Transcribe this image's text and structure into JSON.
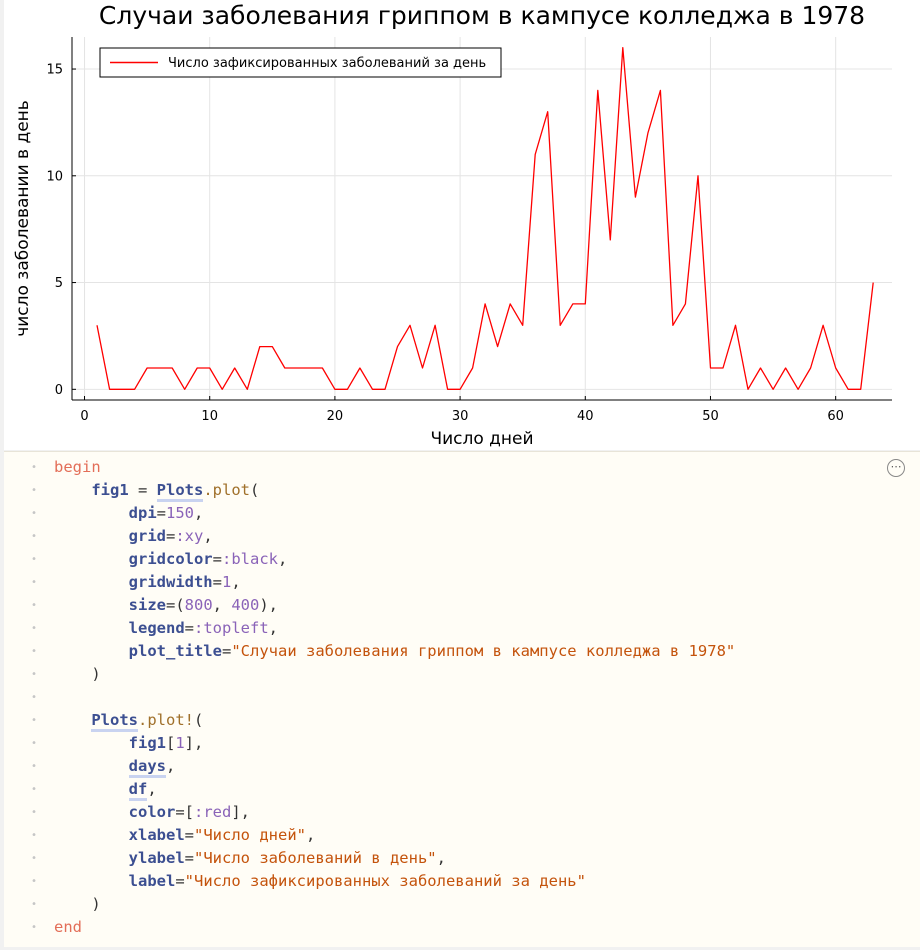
{
  "chart_data": {
    "type": "line",
    "title": "Случаи заболевания гриппом в кампусе колледжа в 1978",
    "xlabel": "Число дней",
    "ylabel": "число заболевании в день",
    "xlim": [
      -1,
      64.5
    ],
    "ylim": [
      -0.5,
      16.5
    ],
    "xticks": [
      0,
      10,
      20,
      30,
      40,
      50,
      60
    ],
    "yticks": [
      0,
      5,
      10,
      15
    ],
    "grid": true,
    "legend_position": "top-left",
    "series": [
      {
        "name": "Число зафиксированных заболеваний за день",
        "color": "#ff0000",
        "x": [
          1,
          2,
          3,
          4,
          5,
          6,
          7,
          8,
          9,
          10,
          11,
          12,
          13,
          14,
          15,
          16,
          17,
          18,
          19,
          20,
          21,
          22,
          23,
          24,
          25,
          26,
          27,
          28,
          29,
          30,
          31,
          32,
          33,
          34,
          35,
          36,
          37,
          38,
          39,
          40,
          41,
          42,
          43,
          44,
          45,
          46,
          47,
          48,
          49,
          50,
          51,
          52,
          53,
          54,
          55,
          56,
          57,
          58,
          59,
          60,
          61,
          62,
          63
        ],
        "y": [
          3,
          0,
          0,
          0,
          1,
          1,
          1,
          0,
          1,
          1,
          0,
          1,
          0,
          2,
          2,
          1,
          1,
          1,
          1,
          0,
          0,
          1,
          0,
          0,
          2,
          3,
          1,
          3,
          0,
          0,
          1,
          4,
          2,
          4,
          3,
          11,
          13,
          3,
          4,
          4,
          14,
          7,
          16,
          9,
          12,
          14,
          3,
          4,
          10,
          1,
          1,
          3,
          0,
          1,
          0,
          1,
          0,
          1,
          3,
          1,
          0,
          0,
          5
        ]
      }
    ]
  },
  "code": {
    "begin": "begin",
    "l1_var": "fig1",
    "l1_eq": " = ",
    "l1_mod": "Plots",
    "l1_fn": ".plot",
    "l1_paren": "(",
    "dpi_key": "dpi",
    "dpi_val": "150",
    "grid_key": "grid",
    "grid_val": ":xy",
    "gridcolor_key": "gridcolor",
    "gridcolor_val": ":black",
    "gridwidth_key": "gridwidth",
    "gridwidth_val": "1",
    "size_key": "size",
    "size_val1": "800",
    "size_val2": "400",
    "legend_key": "legend",
    "legend_val": ":topleft",
    "title_key": "plot_title",
    "title_val": "\"Случаи заболевания гриппом в кампусе колледжа в 1978\"",
    "close1": ")",
    "l2_mod": "Plots",
    "l2_fn": ".plot!",
    "l2_paren": "(",
    "arg_fig": "fig1",
    "arg_idx": "1",
    "arg_days": "days",
    "arg_df": "df",
    "color_key": "color",
    "color_val": ":red",
    "xlabel_key": "xlabel",
    "xlabel_val": "\"Число дней\"",
    "ylabel_key": "ylabel",
    "ylabel_val": "\"Число заболеваний в день\"",
    "label_key": "label",
    "label_val": "\"Число зафиксированных заболеваний за день\"",
    "close2": ")",
    "end": "end",
    "menu_icon": "⋯"
  }
}
